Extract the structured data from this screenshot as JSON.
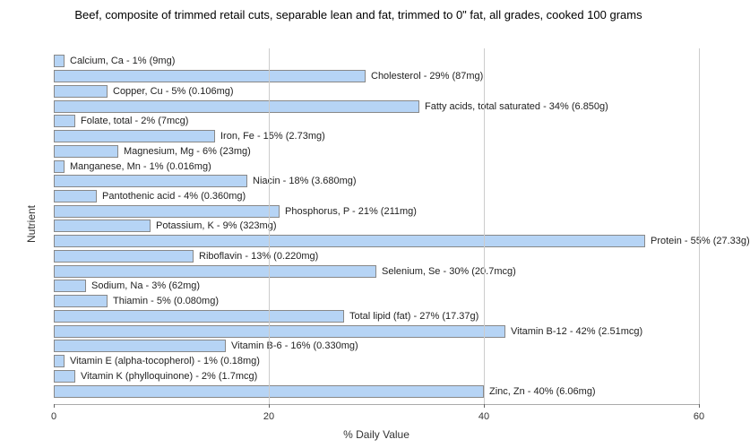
{
  "title": "Beef, composite of trimmed retail cuts, separable lean and fat, trimmed to 0\" fat, all grades, cooked 100 grams",
  "y_axis_label": "Nutrient",
  "x_axis_label": "% Daily Value",
  "chart": {
    "type": "bar-horizontal",
    "xlim": [
      0,
      60
    ],
    "xtick_step": 20,
    "bar_color": "#b6d4f5",
    "bar_border_color": "#888888",
    "grid_color": "#cccccc",
    "background_color": "#ffffff",
    "label_fontsize": 11,
    "title_fontsize": 13,
    "axis_label_fontsize": 12
  },
  "nutrients": [
    {
      "label": "Calcium, Ca - 1% (9mg)",
      "value": 1
    },
    {
      "label": "Cholesterol - 29% (87mg)",
      "value": 29
    },
    {
      "label": "Copper, Cu - 5% (0.106mg)",
      "value": 5
    },
    {
      "label": "Fatty acids, total saturated - 34% (6.850g)",
      "value": 34
    },
    {
      "label": "Folate, total - 2% (7mcg)",
      "value": 2
    },
    {
      "label": "Iron, Fe - 15% (2.73mg)",
      "value": 15
    },
    {
      "label": "Magnesium, Mg - 6% (23mg)",
      "value": 6
    },
    {
      "label": "Manganese, Mn - 1% (0.016mg)",
      "value": 1
    },
    {
      "label": "Niacin - 18% (3.680mg)",
      "value": 18
    },
    {
      "label": "Pantothenic acid - 4% (0.360mg)",
      "value": 4
    },
    {
      "label": "Phosphorus, P - 21% (211mg)",
      "value": 21
    },
    {
      "label": "Potassium, K - 9% (323mg)",
      "value": 9
    },
    {
      "label": "Protein - 55% (27.33g)",
      "value": 55
    },
    {
      "label": "Riboflavin - 13% (0.220mg)",
      "value": 13
    },
    {
      "label": "Selenium, Se - 30% (20.7mcg)",
      "value": 30
    },
    {
      "label": "Sodium, Na - 3% (62mg)",
      "value": 3
    },
    {
      "label": "Thiamin - 5% (0.080mg)",
      "value": 5
    },
    {
      "label": "Total lipid (fat) - 27% (17.37g)",
      "value": 27
    },
    {
      "label": "Vitamin B-12 - 42% (2.51mcg)",
      "value": 42
    },
    {
      "label": "Vitamin B-6 - 16% (0.330mg)",
      "value": 16
    },
    {
      "label": "Vitamin E (alpha-tocopherol) - 1% (0.18mg)",
      "value": 1
    },
    {
      "label": "Vitamin K (phylloquinone) - 2% (1.7mcg)",
      "value": 2
    },
    {
      "label": "Zinc, Zn - 40% (6.06mg)",
      "value": 40
    }
  ]
}
